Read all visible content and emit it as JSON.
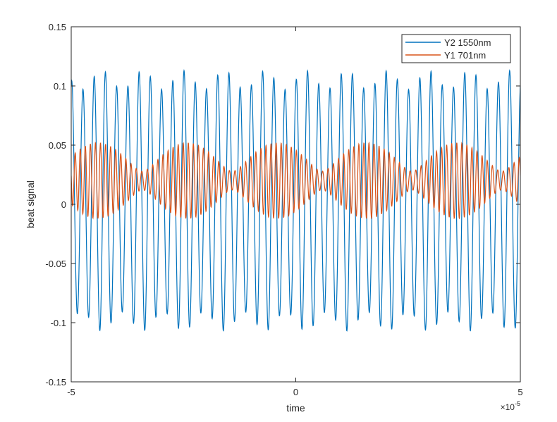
{
  "chart_data": {
    "type": "line",
    "title": "",
    "xlabel": "time",
    "ylabel": "beat signal",
    "xlim": [
      -5e-05,
      5e-05
    ],
    "ylim": [
      -0.15,
      0.15
    ],
    "x_exponent_label": "×10",
    "x_exponent_power": "-5",
    "x_ticks": [
      -5,
      0,
      5
    ],
    "x_tick_labels": [
      "-5",
      "0",
      "5"
    ],
    "y_ticks": [
      -0.15,
      -0.1,
      -0.05,
      0,
      0.05,
      0.1,
      0.15
    ],
    "y_tick_labels": [
      "-0.15",
      "-0.1",
      "-0.05",
      "0",
      "0.05",
      "0.1",
      "0.15"
    ],
    "grid": false,
    "legend_position": "top-right",
    "series": [
      {
        "name": "Y2 1550nm",
        "color": "#0072BD",
        "model": {
          "offset": 0.003,
          "amplitude": 0.102,
          "frequency_hz": 400000,
          "phase": -0.3,
          "envelope_ripple": 0.008,
          "envelope_frequency_hz": 110000,
          "peak_max": 0.115,
          "trough_min": -0.118
        }
      },
      {
        "name": "Y1 701nm",
        "color": "#D95319",
        "model": {
          "offset": 0.02,
          "components": [
            {
              "amplitude": 0.02,
              "frequency_hz": 870000,
              "phase": 0.4
            },
            {
              "amplitude": 0.012,
              "frequency_hz": 920000,
              "phase": 1.7
            }
          ],
          "range": [
            -0.015,
            0.055
          ]
        }
      }
    ]
  }
}
